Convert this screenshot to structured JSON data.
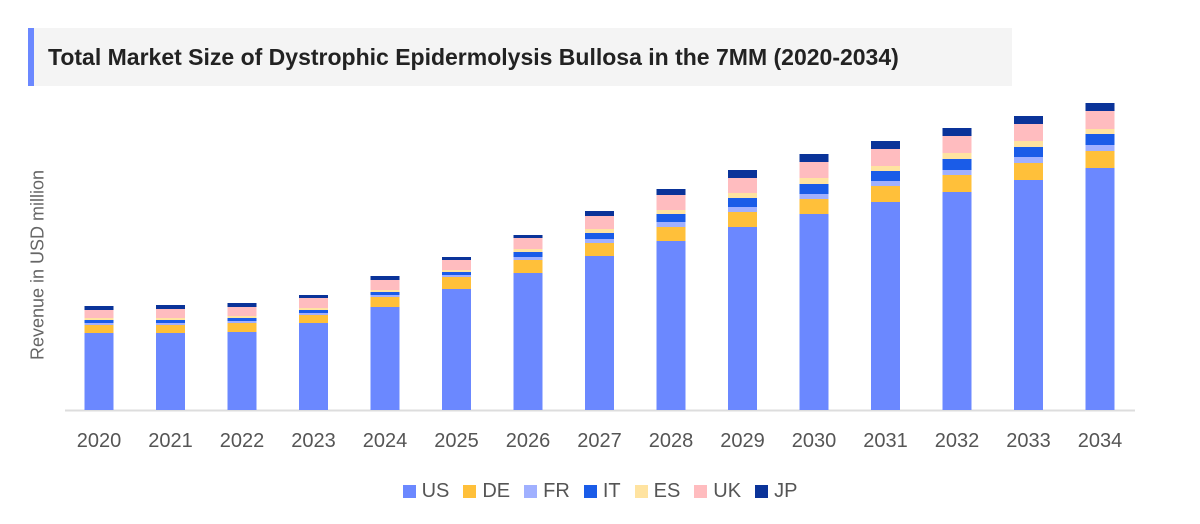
{
  "chart_data": {
    "type": "bar",
    "stacked": true,
    "title": "Total Market Size of Dystrophic Epidermolysis Bullosa in the 7MM (2020-2034)",
    "xlabel": "",
    "ylabel": "Revenue in USD million",
    "grid": false,
    "legend_position": "bottom",
    "categories": [
      "2020",
      "2021",
      "2022",
      "2023",
      "2024",
      "2025",
      "2026",
      "2027",
      "2028",
      "2029",
      "2030",
      "2031",
      "2032",
      "2033",
      "2034"
    ],
    "series": [
      {
        "name": "US",
        "color": "#6b88ff",
        "values": [
          77,
          77,
          78,
          87,
          103,
          121,
          137,
          154,
          169,
          183,
          196,
          208,
          218,
          230,
          242
        ]
      },
      {
        "name": "DE",
        "color": "#ffc03a",
        "values": [
          8,
          8,
          9,
          8,
          10,
          12,
          13,
          13,
          14,
          15,
          15,
          16,
          17,
          17,
          17
        ]
      },
      {
        "name": "FR",
        "color": "#a0b0ff",
        "values": [
          2,
          2,
          2,
          2,
          2,
          2,
          3,
          4,
          5,
          5,
          5,
          5,
          5,
          6,
          6
        ]
      },
      {
        "name": "IT",
        "color": "#1a5ce8",
        "values": [
          3,
          3,
          3,
          3,
          3,
          3,
          5,
          6,
          8,
          9,
          10,
          10,
          11,
          10,
          11
        ]
      },
      {
        "name": "ES",
        "color": "#ffe3a0",
        "values": [
          2,
          2,
          2,
          2,
          2,
          2,
          3,
          4,
          4,
          5,
          6,
          5,
          6,
          6,
          5
        ]
      },
      {
        "name": "UK",
        "color": "#ffbcbf",
        "values": [
          8,
          9,
          9,
          10,
          10,
          10,
          11,
          13,
          15,
          15,
          16,
          17,
          17,
          17,
          18
        ]
      },
      {
        "name": "JP",
        "color": "#0a3399",
        "values": [
          4,
          4,
          4,
          3,
          4,
          3,
          3,
          5,
          6,
          8,
          8,
          8,
          8,
          8,
          8
        ]
      }
    ]
  }
}
